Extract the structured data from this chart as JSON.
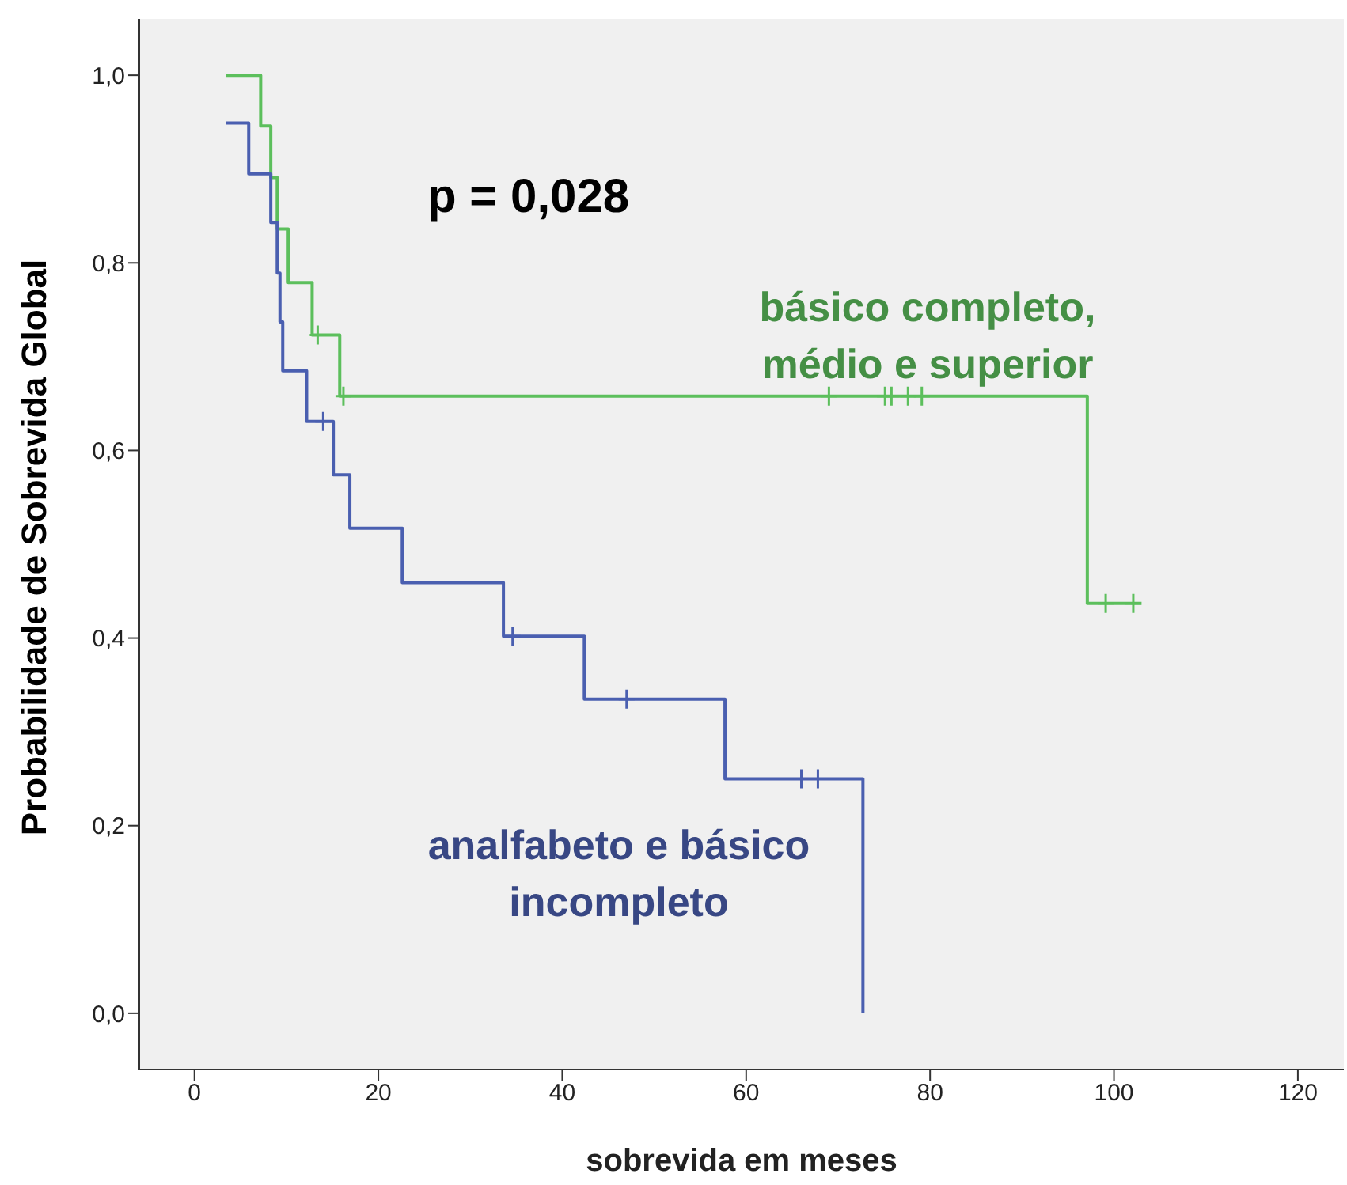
{
  "chart_data": {
    "type": "step",
    "xlabel": "sobrevida em meses",
    "ylabel": "Probabilidade de Sobrevida Global",
    "annotations": [
      "p = 0,028"
    ],
    "xlim": [
      -6,
      125
    ],
    "xticks": [
      0,
      20,
      40,
      60,
      80,
      100,
      120
    ],
    "ylim": [
      -0.06,
      1.06
    ],
    "yticks": [
      {
        "value": 0,
        "label": "0,0"
      },
      {
        "value": 0.2,
        "label": "0,2"
      },
      {
        "value": 0.4,
        "label": "0,4"
      },
      {
        "value": 0.6,
        "label": "0,6"
      },
      {
        "value": 0.8,
        "label": "0,8"
      },
      {
        "value": 1,
        "label": "1,0"
      }
    ],
    "grid": false,
    "legend": false,
    "line_style": "solid",
    "series": [
      {
        "name": "básico completo, médio e superior",
        "color": "#5cbf5c",
        "x": [
          3.4,
          7.2,
          8.3,
          9.0,
          10.2,
          12.8,
          15.8,
          97.1,
          103
        ],
        "values": [
          1.0,
          0.946,
          0.891,
          0.836,
          0.779,
          0.723,
          0.658,
          0.437,
          0.437
        ]
      },
      {
        "name": "analfabeto e básico incompleto",
        "color": "#4a5fb0",
        "x": [
          3.4,
          5.9,
          8.3,
          9.0,
          9.3,
          9.6,
          12.2,
          15.1,
          16.9,
          22.6,
          33.6,
          42.4,
          57.7,
          72.7
        ],
        "values": [
          0.949,
          0.895,
          0.843,
          0.789,
          0.737,
          0.685,
          0.631,
          0.574,
          0.517,
          0.459,
          0.402,
          0.335,
          0.25,
          0
        ]
      },
      {
        "type": "scatter",
        "marker": "cross",
        "color": "#5cbf5c",
        "x": [
          13.4,
          16.2,
          69.0,
          75.1,
          75.8,
          77.6,
          79.1,
          99.1,
          102.1
        ],
        "values": [
          0.723,
          0.658,
          0.658,
          0.658,
          0.658,
          0.658,
          0.658,
          0.437,
          0.437
        ]
      },
      {
        "type": "scatter",
        "marker": "cross",
        "color": "#4a5fb0",
        "x": [
          14.0,
          34.6,
          47.0,
          66.0,
          67.8
        ],
        "values": [
          0.631,
          0.402,
          0.335,
          0.25,
          0.25
        ]
      }
    ]
  }
}
